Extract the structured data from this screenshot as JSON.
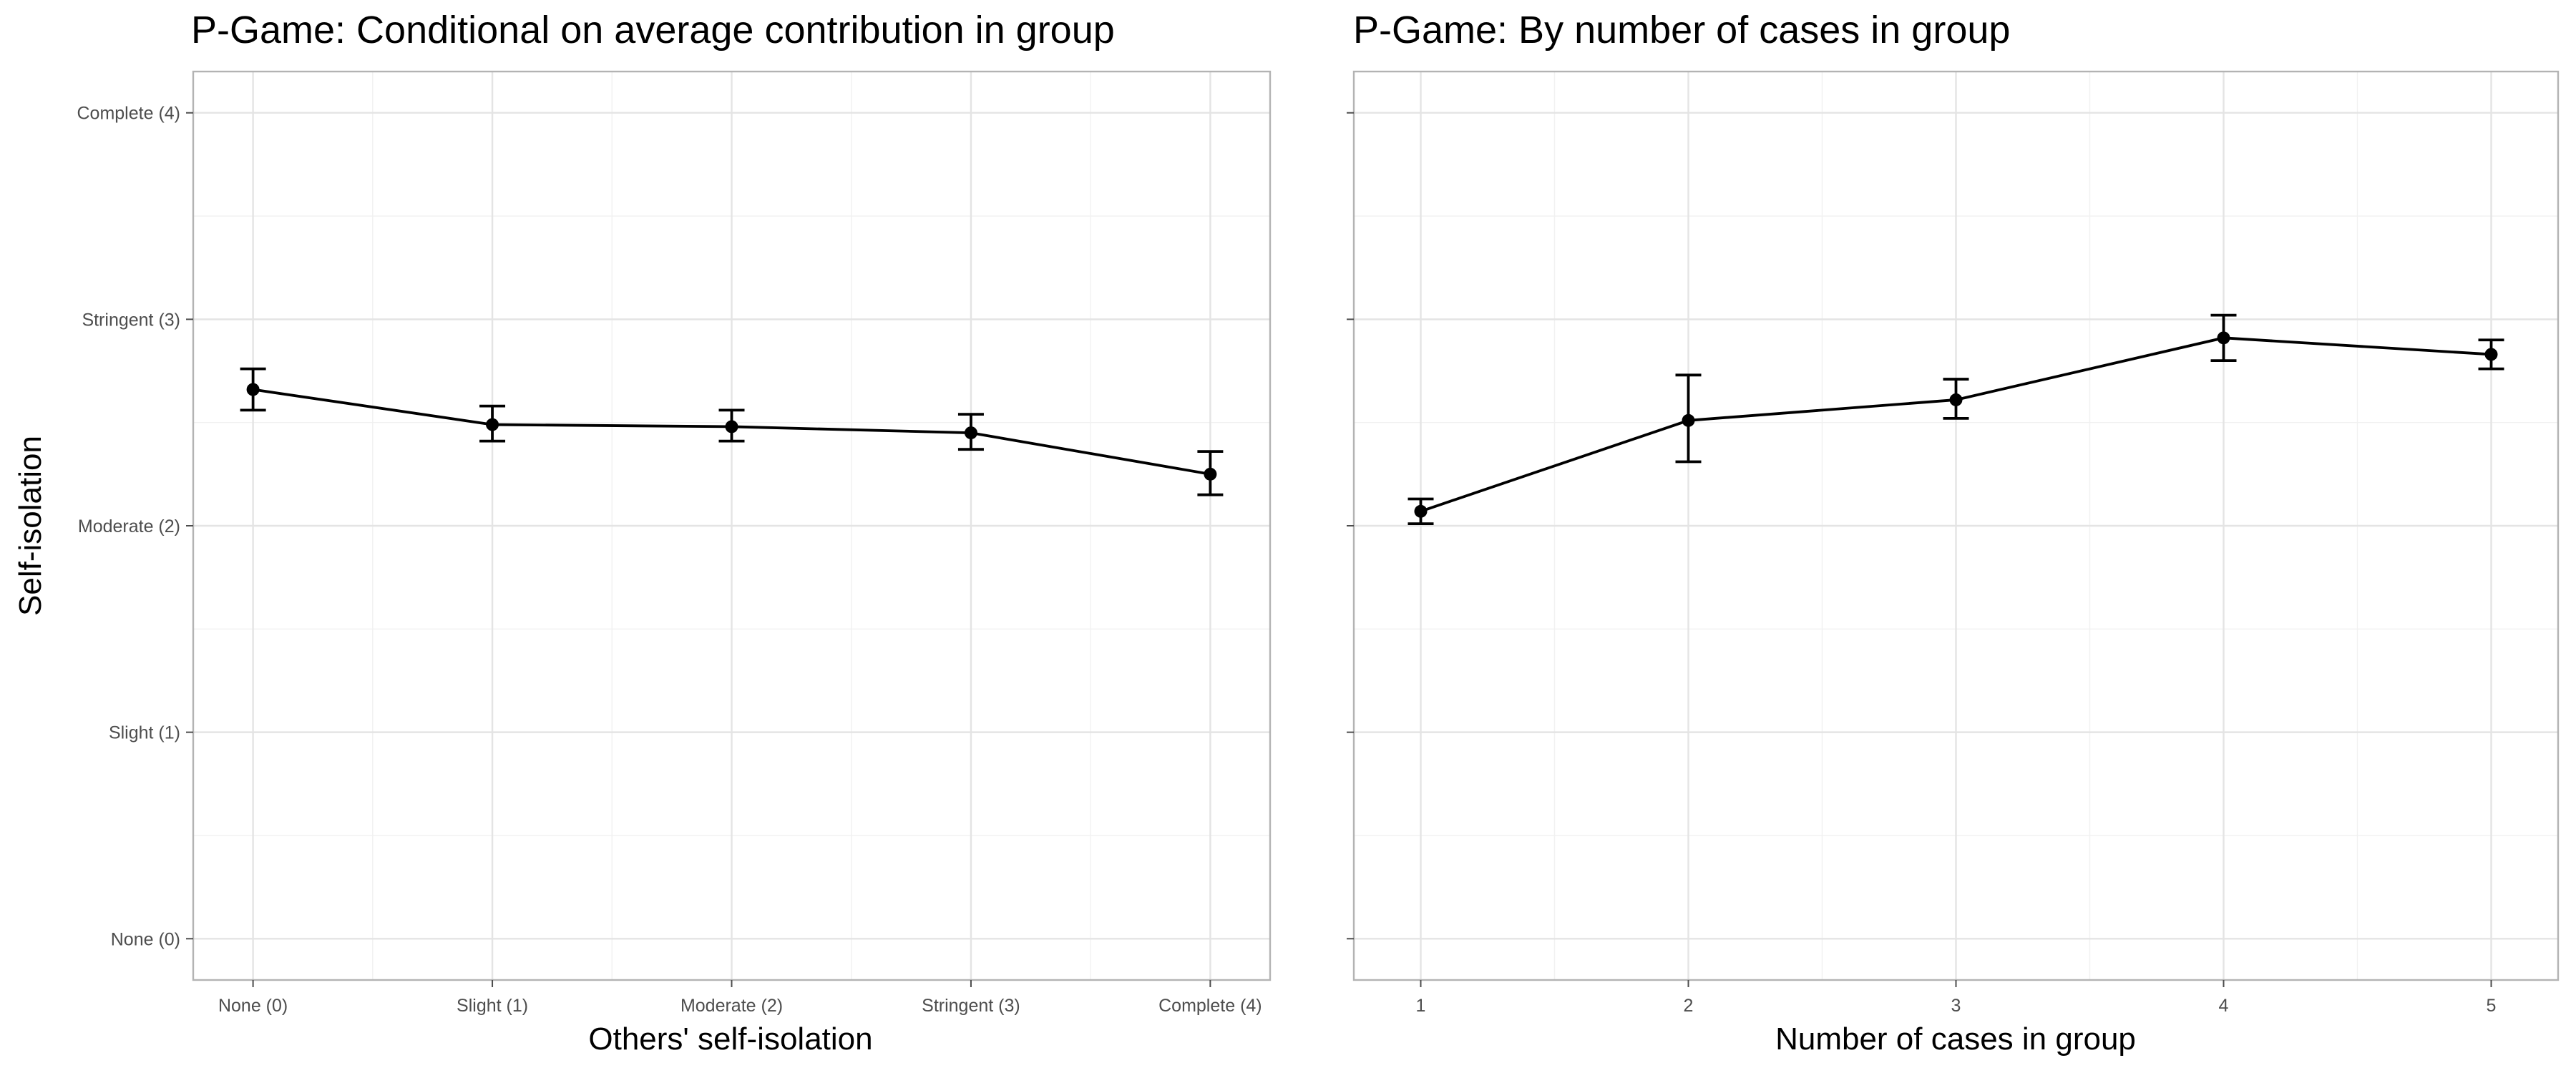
{
  "y_axis_label": "Self-isolation",
  "chart_data": [
    {
      "type": "line",
      "title": "P-Game: Conditional on average contribution in group",
      "xlabel": "Others' self-isolation",
      "ylabel": "Self-isolation",
      "x": [
        "None (0)",
        "Slight (1)",
        "Moderate (2)",
        "Stringent (3)",
        "Complete (4)"
      ],
      "x_numeric": [
        0,
        1,
        2,
        3,
        4
      ],
      "xlim": [
        -0.25,
        4.25
      ],
      "ylim": [
        -0.2,
        4.2
      ],
      "y_ticks": [
        0,
        1,
        2,
        3,
        4
      ],
      "y_tick_labels": [
        "None (0)",
        "Slight (1)",
        "Moderate (2)",
        "Stringent (3)",
        "Complete (4)"
      ],
      "series": [
        {
          "values": [
            2.66,
            2.49,
            2.48,
            2.45,
            2.25
          ],
          "lower": [
            2.56,
            2.41,
            2.41,
            2.37,
            2.15
          ],
          "upper": [
            2.76,
            2.58,
            2.56,
            2.54,
            2.36
          ]
        }
      ],
      "grid": true
    },
    {
      "type": "line",
      "title": "P-Game: By number of cases in group",
      "xlabel": "Number of cases in group",
      "ylabel": "",
      "x": [
        "1",
        "2",
        "3",
        "4",
        "5"
      ],
      "x_numeric": [
        1,
        2,
        3,
        4,
        5
      ],
      "xlim": [
        0.75,
        5.25
      ],
      "ylim": [
        -0.2,
        4.2
      ],
      "y_ticks": [
        0,
        1,
        2,
        3,
        4
      ],
      "y_tick_labels": [
        "",
        "",
        "",
        "",
        ""
      ],
      "series": [
        {
          "values": [
            2.07,
            2.51,
            2.61,
            2.91,
            2.83
          ],
          "lower": [
            2.01,
            2.31,
            2.52,
            2.8,
            2.76
          ],
          "upper": [
            2.13,
            2.73,
            2.71,
            3.02,
            2.9
          ]
        }
      ],
      "grid": true
    }
  ]
}
